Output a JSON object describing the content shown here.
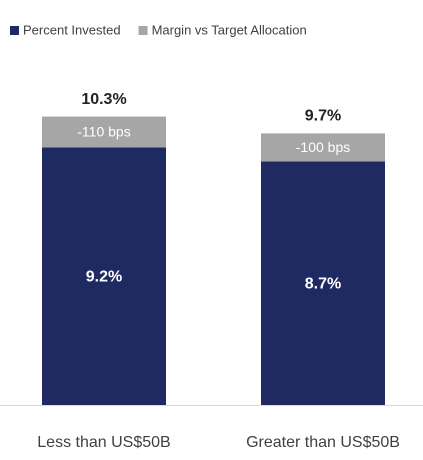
{
  "chart_data": {
    "type": "stacked_bar",
    "categories": [
      "Less than US$50B",
      "Greater than US$50B"
    ],
    "series": [
      {
        "name": "Percent Invested",
        "color": "#1f2a63",
        "values": [
          9.2,
          8.7
        ],
        "value_labels": [
          "9.2%",
          "8.7%"
        ]
      },
      {
        "name": "Margin vs Target Allocation",
        "color": "#a6a6a6",
        "values": [
          1.1,
          1.0
        ],
        "value_labels": [
          "-110 bps",
          "-100 bps"
        ]
      }
    ],
    "total_labels": [
      "10.3%",
      "9.7%"
    ],
    "legend": "top"
  }
}
